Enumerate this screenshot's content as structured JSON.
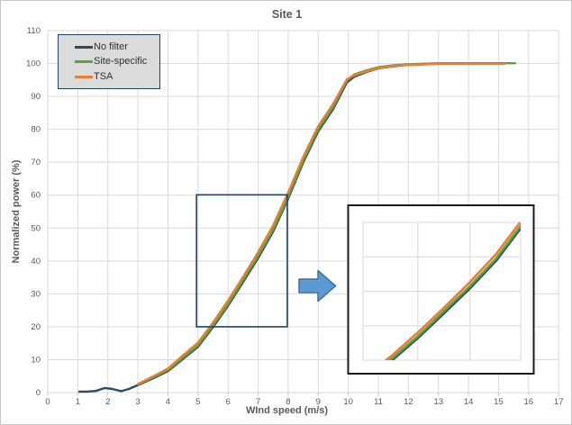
{
  "title": "Site 1",
  "x_axis_label": "WInd speed (m/s)",
  "y_axis_label": "Normalized power (%)",
  "legend": {
    "items": [
      {
        "label": "No filter",
        "color": "#2f4a68"
      },
      {
        "label": "Site-specific",
        "color": "#58a43c"
      },
      {
        "label": "TSA",
        "color": "#ed7d31"
      }
    ]
  },
  "colors": {
    "gridline": "#d9d9d9",
    "tick_mark": "#bfbfbf",
    "tick_text": "#595959",
    "title_text": "#595959",
    "legend_bg": "#dbdbdb",
    "legend_border": "#24425f",
    "zoom_box_border": "#24425f",
    "inset_border": "#1a1a1a",
    "arrow_fill": "#5b9bd5",
    "arrow_stroke": "#41719c",
    "background": "#ffffff"
  },
  "chart_data": {
    "type": "line",
    "title": "Site 1",
    "xlabel": "WInd speed (m/s)",
    "ylabel": "Normalized power (%)",
    "xlim": [
      0,
      17
    ],
    "ylim": [
      0,
      110
    ],
    "grid": true,
    "legend_position": "top-left",
    "x_ticks": [
      0,
      1,
      2,
      3,
      4,
      5,
      6,
      7,
      8,
      9,
      10,
      11,
      12,
      13,
      14,
      15,
      16,
      17
    ],
    "y_ticks": [
      0,
      10,
      20,
      30,
      40,
      50,
      60,
      70,
      80,
      90,
      100,
      110
    ],
    "series": [
      {
        "name": "No filter",
        "color": "#2f4a68",
        "points": [
          [
            1.05,
            0.3
          ],
          [
            1.3,
            0.3
          ],
          [
            1.6,
            0.5
          ],
          [
            1.9,
            1.4
          ],
          [
            2.15,
            1.1
          ],
          [
            2.45,
            0.45
          ],
          [
            2.7,
            1.1
          ],
          [
            3.0,
            2.3
          ],
          [
            3.5,
            4.3
          ],
          [
            4.0,
            6.5
          ],
          [
            4.5,
            10.2
          ],
          [
            5.0,
            13.9
          ],
          [
            5.5,
            19.9
          ],
          [
            6.0,
            26.4
          ],
          [
            6.5,
            33.6
          ],
          [
            7.0,
            40.9
          ],
          [
            7.5,
            48.9
          ],
          [
            8.0,
            58.9
          ],
          [
            8.5,
            69.9
          ],
          [
            9.0,
            79.4
          ],
          [
            9.5,
            86.2
          ],
          [
            9.95,
            94.2
          ],
          [
            10.2,
            96.0
          ],
          [
            10.6,
            97.4
          ],
          [
            11.0,
            98.5
          ],
          [
            11.5,
            99.2
          ],
          [
            12.0,
            99.6
          ],
          [
            13.0,
            99.9
          ],
          [
            14.0,
            99.9
          ],
          [
            15.0,
            100.0
          ]
        ]
      },
      {
        "name": "Site-specific",
        "color": "#58a43c",
        "points": [
          [
            3.0,
            2.5
          ],
          [
            3.5,
            4.6
          ],
          [
            4.0,
            6.8
          ],
          [
            4.5,
            10.6
          ],
          [
            5.0,
            14.3
          ],
          [
            5.5,
            20.4
          ],
          [
            6.0,
            26.9
          ],
          [
            6.5,
            34.2
          ],
          [
            7.0,
            41.5
          ],
          [
            7.5,
            49.5
          ],
          [
            8.0,
            59.5
          ],
          [
            8.5,
            70.5
          ],
          [
            9.0,
            80.0
          ],
          [
            9.5,
            86.8
          ],
          [
            9.95,
            94.8
          ],
          [
            10.2,
            96.7
          ],
          [
            10.6,
            97.9
          ],
          [
            11.0,
            98.9
          ],
          [
            11.5,
            99.5
          ],
          [
            12.0,
            99.8
          ],
          [
            13.0,
            100.1
          ],
          [
            14.0,
            100.1
          ],
          [
            15.55,
            100.1
          ]
        ]
      },
      {
        "name": "TSA",
        "color": "#ed7d31",
        "points": [
          [
            3.0,
            2.6
          ],
          [
            3.5,
            4.9
          ],
          [
            4.0,
            7.3
          ],
          [
            4.5,
            11.3
          ],
          [
            5.0,
            15.2
          ],
          [
            5.5,
            21.3
          ],
          [
            6.0,
            28.0
          ],
          [
            6.5,
            35.2
          ],
          [
            7.0,
            42.7
          ],
          [
            7.5,
            50.8
          ],
          [
            8.0,
            60.8
          ],
          [
            8.5,
            71.6
          ],
          [
            9.0,
            81.0
          ],
          [
            9.5,
            87.8
          ],
          [
            9.95,
            95.2
          ],
          [
            10.2,
            96.4
          ],
          [
            10.6,
            97.6
          ],
          [
            11.0,
            98.6
          ],
          [
            11.5,
            99.3
          ],
          [
            12.0,
            99.6
          ],
          [
            13.0,
            99.9
          ],
          [
            14.0,
            99.9
          ],
          [
            15.2,
            99.9
          ]
        ]
      }
    ],
    "annotations": {
      "zoom_box": {
        "x1": 4.95,
        "y1": 20,
        "x2": 7.97,
        "y2": 60.1
      },
      "inset": {
        "xlim": [
          4.95,
          7.97
        ],
        "ylim": [
          20,
          60
        ],
        "x_gridlines": [
          6,
          7
        ],
        "y_gridlines": [
          30,
          40,
          50
        ]
      }
    }
  }
}
